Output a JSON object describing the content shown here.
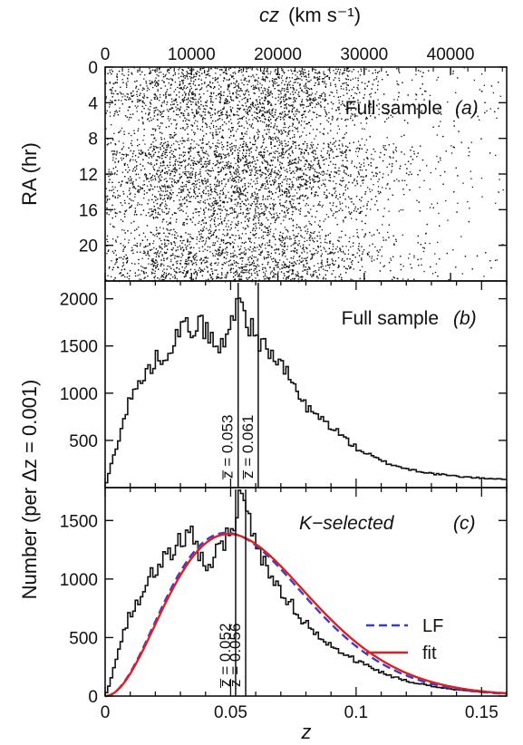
{
  "chart_data": [
    {
      "panel": "a",
      "type": "scatter",
      "title": "Full sample",
      "panel_label": "(a)",
      "top_axis_label": "cz",
      "top_axis_unit": "(km s⁻¹)",
      "ylabel": "RA (hr)",
      "top_ticks": [
        "0",
        "10000",
        "20000",
        "30000",
        "40000"
      ],
      "top_tick_values": [
        0,
        10000,
        20000,
        30000,
        40000
      ],
      "yticks": [
        "0",
        "4",
        "8",
        "12",
        "16",
        "20"
      ],
      "ytick_values": [
        0,
        4,
        8,
        12,
        16,
        20
      ],
      "xlim": [
        0,
        46500
      ],
      "ylim": [
        0,
        24
      ],
      "y_inverted": true,
      "structure_rows_hr": [
        1.5,
        3.5,
        9.5,
        12.0,
        13.2,
        21.5
      ],
      "structure_cz": [
        6000,
        13000,
        16500,
        19500
      ],
      "point_color": "#111111"
    },
    {
      "panel": "b",
      "type": "line",
      "style": "step",
      "title": "Full sample",
      "panel_label": "(b)",
      "xlim": [
        0,
        0.16
      ],
      "ylim": [
        0,
        2150
      ],
      "yticks": [
        "500",
        "1000",
        "1500",
        "2000"
      ],
      "ytick_values": [
        500,
        1000,
        1500,
        2000
      ],
      "bin_width": 0.001,
      "anchors": [
        [
          0,
          0
        ],
        [
          0.002,
          200
        ],
        [
          0.005,
          480
        ],
        [
          0.01,
          950
        ],
        [
          0.015,
          1150
        ],
        [
          0.02,
          1350
        ],
        [
          0.025,
          1450
        ],
        [
          0.03,
          1680
        ],
        [
          0.035,
          1700
        ],
        [
          0.038,
          1740
        ],
        [
          0.042,
          1600
        ],
        [
          0.045,
          1450
        ],
        [
          0.048,
          1550
        ],
        [
          0.05,
          1700
        ],
        [
          0.053,
          2090
        ],
        [
          0.056,
          1800
        ],
        [
          0.06,
          1600
        ],
        [
          0.065,
          1450
        ],
        [
          0.07,
          1300
        ],
        [
          0.075,
          1100
        ],
        [
          0.08,
          850
        ],
        [
          0.085,
          750
        ],
        [
          0.09,
          650
        ],
        [
          0.1,
          420
        ],
        [
          0.11,
          280
        ],
        [
          0.12,
          200
        ],
        [
          0.13,
          150
        ],
        [
          0.14,
          120
        ],
        [
          0.15,
          100
        ],
        [
          0.16,
          90
        ]
      ],
      "vlines": [
        {
          "x": 0.053,
          "label": "z̅ = 0.053"
        },
        {
          "x": 0.061,
          "label": "z̅ = 0.061"
        }
      ]
    },
    {
      "panel": "c",
      "type": "line",
      "style": "step",
      "title": "K−selected",
      "panel_label": "(c)",
      "xlim": [
        0,
        0.16
      ],
      "ylim": [
        0,
        1750
      ],
      "xlabel": "z",
      "xticks": [
        "0",
        "0.05",
        "0.1",
        "0.15"
      ],
      "xtick_values": [
        0,
        0.05,
        0.1,
        0.15
      ],
      "yticks": [
        "0",
        "500",
        "1000",
        "1500"
      ],
      "ytick_values": [
        0,
        500,
        1000,
        1500
      ],
      "bin_width": 0.001,
      "anchors": [
        [
          0,
          0
        ],
        [
          0.002,
          120
        ],
        [
          0.005,
          380
        ],
        [
          0.01,
          700
        ],
        [
          0.015,
          900
        ],
        [
          0.02,
          1100
        ],
        [
          0.025,
          1200
        ],
        [
          0.03,
          1350
        ],
        [
          0.035,
          1370
        ],
        [
          0.038,
          1200
        ],
        [
          0.04,
          1100
        ],
        [
          0.043,
          1180
        ],
        [
          0.046,
          1300
        ],
        [
          0.05,
          1380
        ],
        [
          0.053,
          1650
        ],
        [
          0.055,
          1700
        ],
        [
          0.058,
          1420
        ],
        [
          0.062,
          1200
        ],
        [
          0.065,
          1050
        ],
        [
          0.07,
          900
        ],
        [
          0.075,
          760
        ],
        [
          0.08,
          620
        ],
        [
          0.085,
          520
        ],
        [
          0.09,
          430
        ],
        [
          0.1,
          300
        ],
        [
          0.11,
          200
        ],
        [
          0.12,
          130
        ],
        [
          0.13,
          85
        ],
        [
          0.14,
          55
        ],
        [
          0.15,
          35
        ],
        [
          0.16,
          25
        ]
      ],
      "vlines": [
        {
          "x": 0.052,
          "label": "z̅ = 0.052"
        },
        {
          "x": 0.056,
          "label": "z̅ = 0.056"
        }
      ],
      "curves": [
        {
          "name": "LF",
          "color": "#3b3bd0",
          "dash": true,
          "peak_z": 0.046,
          "peak_n": 1390,
          "shape_k": 2.0
        },
        {
          "name": "fit",
          "color": "#e02020",
          "dash": false,
          "peak_z": 0.047,
          "peak_n": 1380,
          "shape_k": 2.0
        }
      ]
    }
  ],
  "shared_ylabel": "Number (per Δz = 0.001)"
}
